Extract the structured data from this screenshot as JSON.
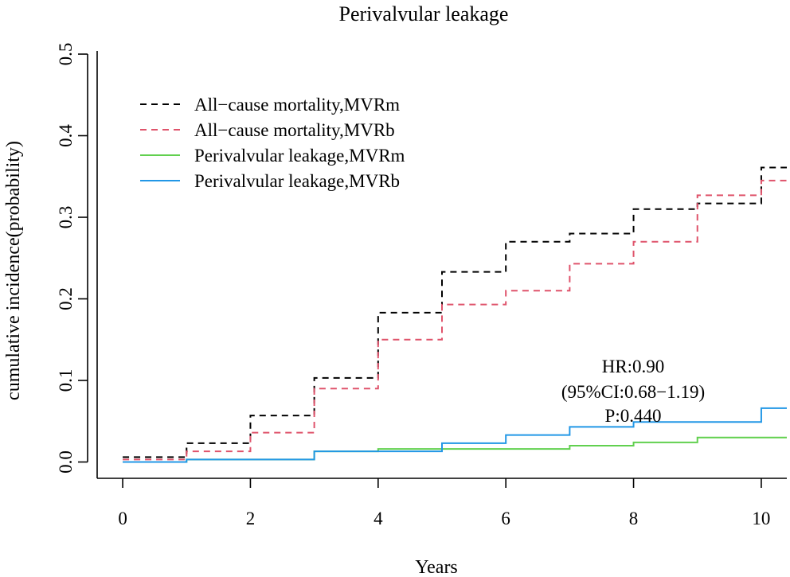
{
  "chart_data": {
    "type": "line",
    "title": "Perivalvular leakage",
    "xlabel": "Years",
    "ylabel": "cumulative incidence(probability)",
    "xlim": [
      -0.4,
      10.4
    ],
    "ylim": [
      -0.02,
      0.5
    ],
    "xticks": [
      0,
      2,
      4,
      6,
      8,
      10
    ],
    "yticks": [
      0.0,
      0.1,
      0.2,
      0.3,
      0.4,
      0.5
    ],
    "xtick_labels": [
      "0",
      "2",
      "4",
      "6",
      "8",
      "10"
    ],
    "ytick_labels": [
      "0.0",
      "0.1",
      "0.2",
      "0.3",
      "0.4",
      "0.5"
    ],
    "grid": false,
    "legend_position": "top-left",
    "series": [
      {
        "name": "All−cause mortality,MVRm",
        "color": "#000000",
        "dash": "dashed",
        "step": true,
        "x": [
          0,
          1,
          2,
          3,
          4,
          5,
          6,
          7,
          8,
          9,
          10,
          10.4
        ],
        "y": [
          0.006,
          0.023,
          0.057,
          0.103,
          0.183,
          0.233,
          0.27,
          0.28,
          0.31,
          0.317,
          0.361,
          0.361
        ]
      },
      {
        "name": "All−cause mortality,MVRb",
        "color": "#df536b",
        "dash": "dashed",
        "step": true,
        "x": [
          0,
          1,
          2,
          3,
          4,
          5,
          6,
          7,
          8,
          9,
          10,
          10.4
        ],
        "y": [
          0.003,
          0.013,
          0.036,
          0.09,
          0.15,
          0.193,
          0.21,
          0.243,
          0.27,
          0.327,
          0.345,
          0.345
        ]
      },
      {
        "name": "Perivalvular leakage,MVRm",
        "color": "#61d04f",
        "dash": "solid",
        "step": true,
        "x": [
          0,
          1,
          3,
          4,
          7,
          8,
          9,
          10.4
        ],
        "y": [
          0.0,
          0.003,
          0.013,
          0.016,
          0.02,
          0.024,
          0.03,
          0.03
        ]
      },
      {
        "name": "Perivalvular leakage,MVRb",
        "color": "#2297e6",
        "dash": "solid",
        "step": true,
        "x": [
          0,
          1,
          3,
          5,
          6,
          7,
          8,
          10,
          10.4
        ],
        "y": [
          0.0,
          0.003,
          0.013,
          0.023,
          0.033,
          0.043,
          0.049,
          0.066,
          0.066
        ]
      }
    ],
    "annotations": [
      "HR:0.90",
      "(95%CI:0.68−1.19)",
      "P:0.440"
    ]
  }
}
